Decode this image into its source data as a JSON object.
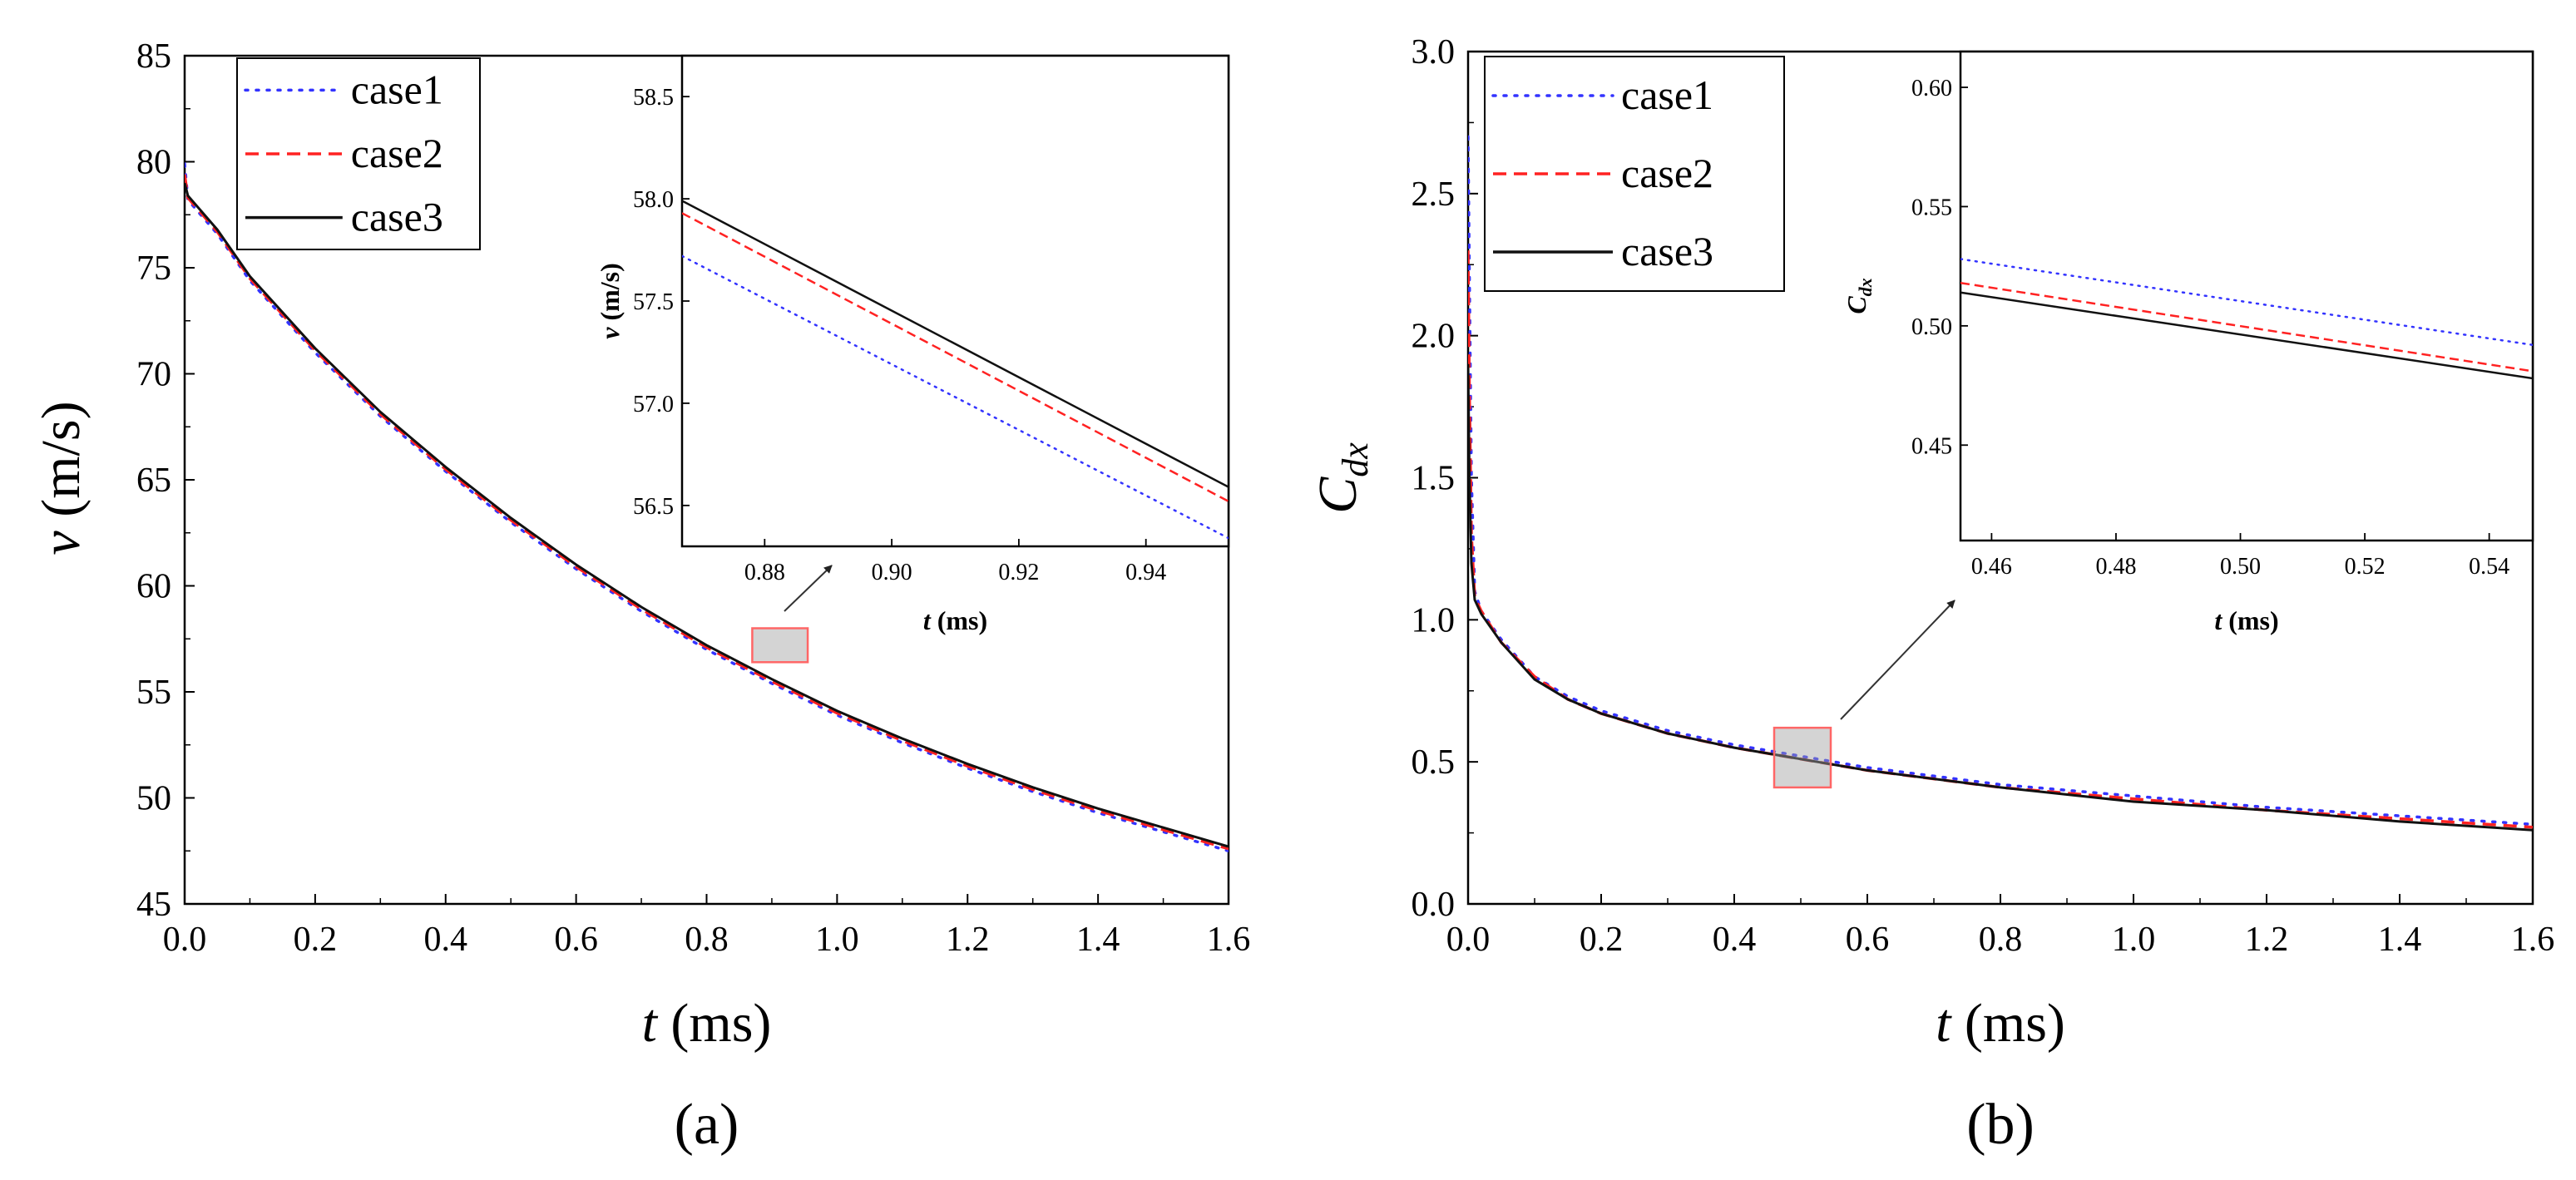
{
  "figure": {
    "description_labels": [
      "(a)",
      "(b)"
    ]
  },
  "chart_data": [
    {
      "type": "line",
      "panel_label": "(a)",
      "xlabel_var": "t",
      "xlabel_unit": " (ms)",
      "ylabel_var": "v",
      "ylabel_unit": " (m/s)",
      "xlim": [
        0,
        1.6
      ],
      "ylim": [
        45,
        85
      ],
      "xticks": [
        "0.0",
        "0.2",
        "0.4",
        "0.6",
        "0.8",
        "1.0",
        "1.2",
        "1.4",
        "1.6"
      ],
      "yticks": [
        "45",
        "50",
        "55",
        "60",
        "65",
        "70",
        "75",
        "80",
        "85"
      ],
      "legend": {
        "position": "top-left",
        "entries": [
          "case1",
          "case2",
          "case3"
        ]
      },
      "x": [
        0,
        0.005,
        0.05,
        0.1,
        0.2,
        0.3,
        0.4,
        0.5,
        0.6,
        0.7,
        0.8,
        0.9,
        1.0,
        1.1,
        1.2,
        1.3,
        1.4,
        1.5,
        1.6
      ],
      "series": [
        {
          "name": "case1",
          "color": "#3333ff",
          "style": "dotted",
          "values": [
            79.9,
            78.2,
            76.6,
            74.4,
            71.0,
            68.0,
            65.4,
            63.0,
            60.8,
            58.8,
            57.0,
            55.4,
            53.9,
            52.6,
            51.4,
            50.3,
            49.3,
            48.4,
            47.5
          ]
        },
        {
          "name": "case2",
          "color": "#ff2222",
          "style": "dashed",
          "values": [
            79.4,
            78.3,
            76.7,
            74.5,
            71.1,
            68.1,
            65.5,
            63.1,
            60.9,
            58.9,
            57.1,
            55.5,
            54.0,
            52.7,
            51.5,
            50.4,
            49.4,
            48.5,
            47.6
          ]
        },
        {
          "name": "case3",
          "color": "#111111",
          "style": "solid",
          "values": [
            79.0,
            78.4,
            76.8,
            74.6,
            71.2,
            68.2,
            65.6,
            63.2,
            61.0,
            59.0,
            57.2,
            55.6,
            54.1,
            52.8,
            51.6,
            50.5,
            49.5,
            48.6,
            47.7
          ]
        }
      ],
      "zoom_box": {
        "x": [
          0.87,
          0.955
        ],
        "y": [
          56.4,
          58.0
        ]
      },
      "inset": {
        "xlabel_var": "t",
        "xlabel_unit": " (ms)",
        "ylabel_var": "v",
        "ylabel_unit": " (m/s)",
        "xlim": [
          0.867,
          0.953
        ],
        "ylim": [
          56.3,
          58.7
        ],
        "xticks": [
          "0.88",
          "0.90",
          "0.92",
          "0.94"
        ],
        "yticks": [
          "56.5",
          "57.0",
          "57.5",
          "58.0",
          "58.5"
        ],
        "x": [
          0.867,
          0.953
        ],
        "series": [
          {
            "name": "case1",
            "values": [
              57.72,
              56.34
            ]
          },
          {
            "name": "case2",
            "values": [
              57.93,
              56.52
            ]
          },
          {
            "name": "case3",
            "values": [
              57.99,
              56.59
            ]
          }
        ]
      }
    },
    {
      "type": "line",
      "panel_label": "(b)",
      "xlabel_var": "t",
      "xlabel_unit": " (ms)",
      "ylabel_var": "C",
      "ylabel_sub": "dx",
      "xlim": [
        0,
        1.6
      ],
      "ylim": [
        0,
        3.0
      ],
      "xticks": [
        "0.0",
        "0.2",
        "0.4",
        "0.6",
        "0.8",
        "1.0",
        "1.2",
        "1.4",
        "1.6"
      ],
      "yticks": [
        "0.0",
        "0.5",
        "1.0",
        "1.5",
        "2.0",
        "2.5",
        "3.0"
      ],
      "legend": {
        "position": "top-left",
        "entries": [
          "case1",
          "case2",
          "case3"
        ]
      },
      "x": [
        0,
        0.002,
        0.005,
        0.01,
        0.02,
        0.05,
        0.1,
        0.15,
        0.2,
        0.3,
        0.4,
        0.5,
        0.6,
        0.8,
        1.0,
        1.2,
        1.4,
        1.6
      ],
      "series": [
        {
          "name": "case1",
          "color": "#3333ff",
          "style": "dotted",
          "values": [
            2.7,
            2.2,
            1.5,
            1.1,
            1.03,
            0.93,
            0.8,
            0.73,
            0.68,
            0.61,
            0.56,
            0.52,
            0.48,
            0.42,
            0.38,
            0.34,
            0.31,
            0.28
          ]
        },
        {
          "name": "case2",
          "color": "#ff2222",
          "style": "dashed",
          "values": [
            2.3,
            1.8,
            1.3,
            1.08,
            1.03,
            0.92,
            0.8,
            0.72,
            0.67,
            0.6,
            0.55,
            0.51,
            0.47,
            0.41,
            0.37,
            0.33,
            0.3,
            0.27
          ]
        },
        {
          "name": "case3",
          "color": "#111111",
          "style": "solid",
          "values": [
            1.9,
            1.5,
            1.2,
            1.07,
            1.02,
            0.92,
            0.79,
            0.72,
            0.67,
            0.6,
            0.55,
            0.51,
            0.47,
            0.41,
            0.36,
            0.33,
            0.29,
            0.26
          ]
        }
      ],
      "zoom_box": {
        "x": [
          0.46,
          0.545
        ],
        "y": [
          0.41,
          0.62
        ]
      },
      "inset": {
        "xlabel_var": "t",
        "xlabel_unit": " (ms)",
        "ylabel_var": "C",
        "ylabel_sub": "dx",
        "xlim": [
          0.455,
          0.547
        ],
        "ylim": [
          0.41,
          0.615
        ],
        "xticks": [
          "0.46",
          "0.48",
          "0.50",
          "0.52",
          "0.54"
        ],
        "yticks": [
          "0.45",
          "0.50",
          "0.55",
          "0.60"
        ],
        "x": [
          0.455,
          0.547
        ],
        "series": [
          {
            "name": "case1",
            "values": [
              0.528,
              0.492
            ]
          },
          {
            "name": "case2",
            "values": [
              0.518,
              0.481
            ]
          },
          {
            "name": "case3",
            "values": [
              0.514,
              0.478
            ]
          }
        ]
      }
    }
  ]
}
